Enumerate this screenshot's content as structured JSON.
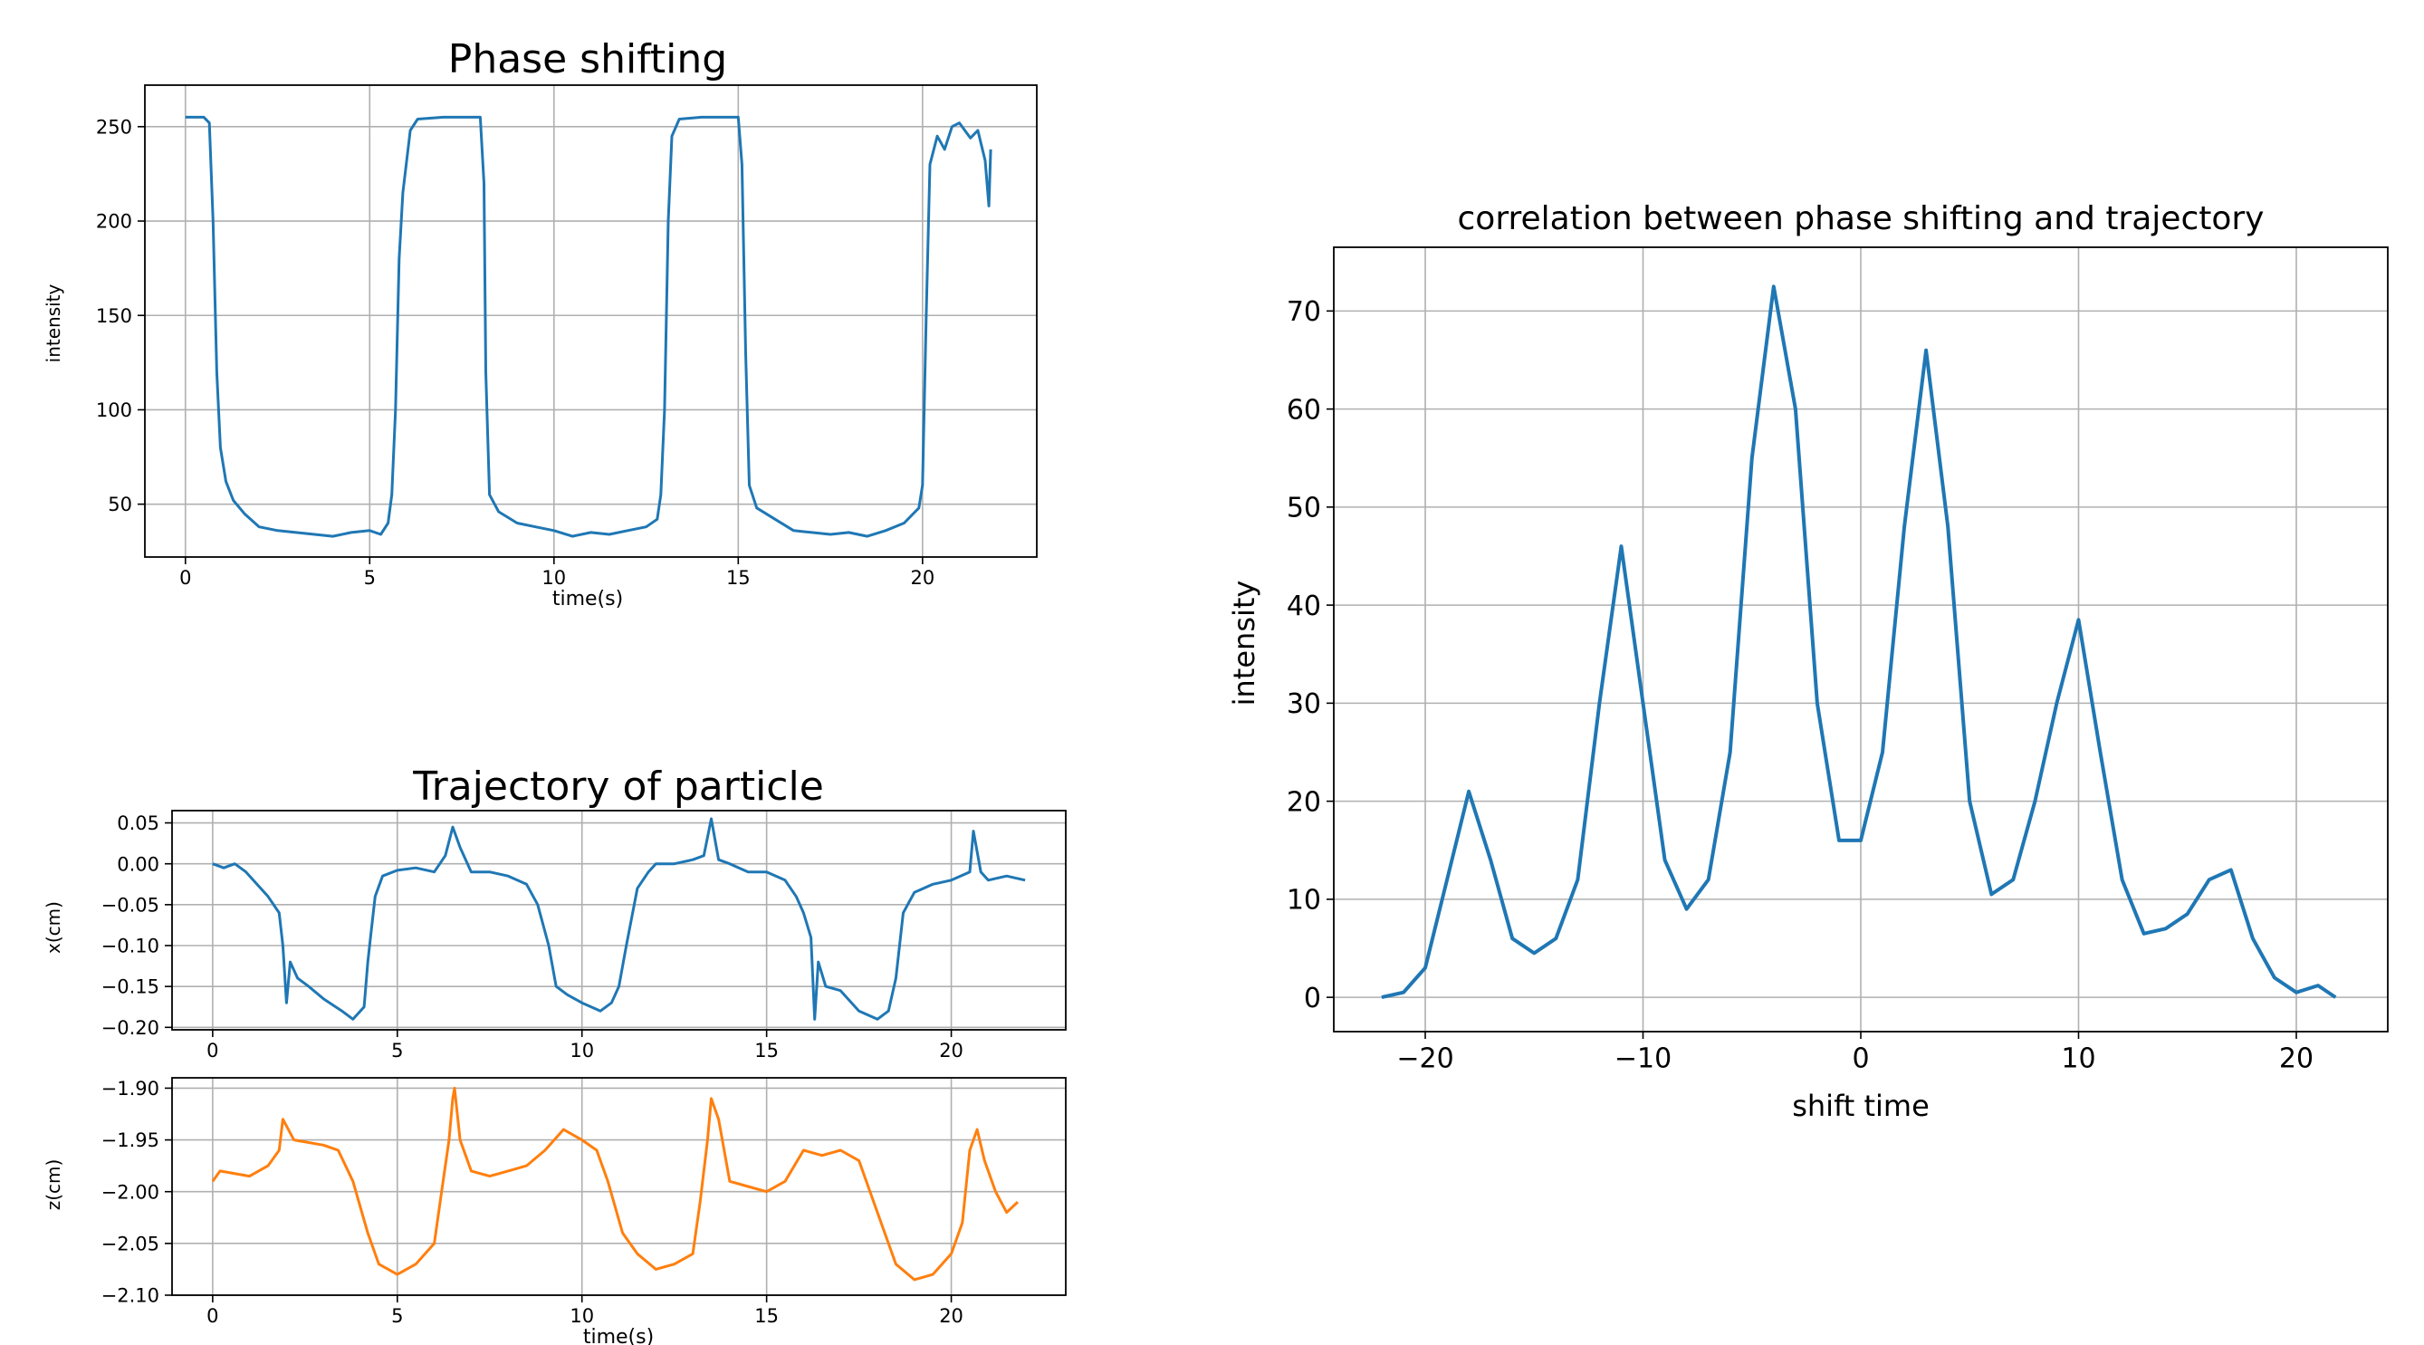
{
  "colors": {
    "series_blue": "#1f77b4",
    "series_orange": "#ff7f0e",
    "grid": "#b0b0b0",
    "axes": "#000000"
  },
  "chart_data": [
    {
      "id": "phase",
      "type": "line",
      "title": "Phase shifting",
      "xlabel": "time(s)",
      "ylabel": "intensity",
      "xlim": [
        -1.1,
        23.1
      ],
      "ylim": [
        22,
        272
      ],
      "xticks": [
        0,
        5,
        10,
        15,
        20
      ],
      "yticks": [
        50,
        100,
        150,
        200,
        250
      ],
      "grid": true,
      "series": [
        {
          "color": "#1f77b4",
          "points": [
            [
              0,
              255
            ],
            [
              0.5,
              255
            ],
            [
              0.65,
              252
            ],
            [
              0.75,
              200
            ],
            [
              0.85,
              120
            ],
            [
              0.95,
              80
            ],
            [
              1.1,
              62
            ],
            [
              1.3,
              52
            ],
            [
              1.6,
              45
            ],
            [
              2,
              38
            ],
            [
              2.5,
              36
            ],
            [
              3,
              35
            ],
            [
              3.5,
              34
            ],
            [
              4,
              33
            ],
            [
              4.5,
              35
            ],
            [
              5,
              36
            ],
            [
              5.3,
              34
            ],
            [
              5.5,
              40
            ],
            [
              5.6,
              55
            ],
            [
              5.7,
              100
            ],
            [
              5.8,
              180
            ],
            [
              5.9,
              215
            ],
            [
              6.1,
              248
            ],
            [
              6.3,
              254
            ],
            [
              7,
              255
            ],
            [
              7.8,
              255
            ],
            [
              8.0,
              255
            ],
            [
              8.1,
              220
            ],
            [
              8.15,
              120
            ],
            [
              8.25,
              55
            ],
            [
              8.5,
              46
            ],
            [
              9,
              40
            ],
            [
              9.5,
              38
            ],
            [
              10,
              36
            ],
            [
              10.5,
              33
            ],
            [
              11,
              35
            ],
            [
              11.5,
              34
            ],
            [
              12,
              36
            ],
            [
              12.5,
              38
            ],
            [
              12.8,
              42
            ],
            [
              12.9,
              55
            ],
            [
              13.0,
              100
            ],
            [
              13.1,
              200
            ],
            [
              13.2,
              245
            ],
            [
              13.4,
              254
            ],
            [
              14,
              255
            ],
            [
              14.8,
              255
            ],
            [
              15.0,
              255
            ],
            [
              15.1,
              230
            ],
            [
              15.2,
              130
            ],
            [
              15.3,
              60
            ],
            [
              15.5,
              48
            ],
            [
              16,
              42
            ],
            [
              16.5,
              36
            ],
            [
              17,
              35
            ],
            [
              17.5,
              34
            ],
            [
              18,
              35
            ],
            [
              18.5,
              33
            ],
            [
              19,
              36
            ],
            [
              19.5,
              40
            ],
            [
              19.9,
              48
            ],
            [
              20.0,
              60
            ],
            [
              20.1,
              150
            ],
            [
              20.2,
              230
            ],
            [
              20.4,
              245
            ],
            [
              20.6,
              238
            ],
            [
              20.8,
              250
            ],
            [
              21,
              252
            ],
            [
              21.3,
              244
            ],
            [
              21.5,
              248
            ],
            [
              21.7,
              232
            ],
            [
              21.8,
              208
            ],
            [
              21.85,
              238
            ]
          ]
        }
      ]
    },
    {
      "id": "x",
      "type": "line",
      "title": "Trajectory of particle",
      "xlabel": "",
      "ylabel": "x(cm)",
      "xlim": [
        -1.1,
        23.1
      ],
      "ylim": [
        -0.203,
        0.065
      ],
      "xticks": [
        0,
        5,
        10,
        15,
        20
      ],
      "yticks": [
        0.05,
        0.0,
        -0.05,
        -0.1,
        -0.15,
        -0.2
      ],
      "ytick_labels": [
        "0.05",
        "0.00",
        "−0.05",
        "−0.10",
        "−0.15",
        "−0.20"
      ],
      "grid": true,
      "series": [
        {
          "color": "#1f77b4",
          "points": [
            [
              0,
              0
            ],
            [
              0.3,
              -0.005
            ],
            [
              0.6,
              0
            ],
            [
              0.9,
              -0.01
            ],
            [
              1.2,
              -0.025
            ],
            [
              1.5,
              -0.04
            ],
            [
              1.8,
              -0.06
            ],
            [
              1.9,
              -0.1
            ],
            [
              2.0,
              -0.17
            ],
            [
              2.1,
              -0.12
            ],
            [
              2.3,
              -0.14
            ],
            [
              2.6,
              -0.15
            ],
            [
              3,
              -0.165
            ],
            [
              3.5,
              -0.18
            ],
            [
              3.8,
              -0.19
            ],
            [
              4.1,
              -0.175
            ],
            [
              4.2,
              -0.12
            ],
            [
              4.3,
              -0.08
            ],
            [
              4.4,
              -0.04
            ],
            [
              4.6,
              -0.015
            ],
            [
              5,
              -0.008
            ],
            [
              5.5,
              -0.005
            ],
            [
              6,
              -0.01
            ],
            [
              6.3,
              0.01
            ],
            [
              6.5,
              0.045
            ],
            [
              6.7,
              0.02
            ],
            [
              7,
              -0.01
            ],
            [
              7.5,
              -0.01
            ],
            [
              8,
              -0.015
            ],
            [
              8.5,
              -0.025
            ],
            [
              8.8,
              -0.05
            ],
            [
              9.1,
              -0.1
            ],
            [
              9.3,
              -0.15
            ],
            [
              9.6,
              -0.16
            ],
            [
              10,
              -0.17
            ],
            [
              10.5,
              -0.18
            ],
            [
              10.8,
              -0.17
            ],
            [
              11,
              -0.15
            ],
            [
              11.2,
              -0.1
            ],
            [
              11.5,
              -0.03
            ],
            [
              11.8,
              -0.01
            ],
            [
              12,
              0
            ],
            [
              12.5,
              0
            ],
            [
              13,
              0.005
            ],
            [
              13.3,
              0.01
            ],
            [
              13.5,
              0.055
            ],
            [
              13.7,
              0.005
            ],
            [
              14,
              0
            ],
            [
              14.5,
              -0.01
            ],
            [
              15,
              -0.01
            ],
            [
              15.5,
              -0.02
            ],
            [
              15.8,
              -0.04
            ],
            [
              16.0,
              -0.06
            ],
            [
              16.2,
              -0.09
            ],
            [
              16.3,
              -0.19
            ],
            [
              16.4,
              -0.12
            ],
            [
              16.6,
              -0.15
            ],
            [
              17,
              -0.155
            ],
            [
              17.5,
              -0.18
            ],
            [
              18,
              -0.19
            ],
            [
              18.3,
              -0.18
            ],
            [
              18.5,
              -0.14
            ],
            [
              18.7,
              -0.06
            ],
            [
              19,
              -0.035
            ],
            [
              19.5,
              -0.025
            ],
            [
              20,
              -0.02
            ],
            [
              20.5,
              -0.01
            ],
            [
              20.6,
              0.04
            ],
            [
              20.8,
              -0.01
            ],
            [
              21,
              -0.02
            ],
            [
              21.5,
              -0.015
            ],
            [
              22,
              -0.02
            ]
          ]
        }
      ]
    },
    {
      "id": "z",
      "type": "line",
      "title": "",
      "xlabel": "time(s)",
      "ylabel": "z(cm)",
      "xlim": [
        -1.1,
        23.1
      ],
      "ylim": [
        -2.1,
        -1.89
      ],
      "xticks": [
        0,
        5,
        10,
        15,
        20
      ],
      "yticks": [
        -1.9,
        -1.95,
        -2.0,
        -2.05,
        -2.1
      ],
      "ytick_labels": [
        "−1.90",
        "−1.95",
        "−2.00",
        "−2.05",
        "−2.10"
      ],
      "grid": true,
      "series": [
        {
          "color": "#ff7f0e",
          "points": [
            [
              0,
              -1.99
            ],
            [
              0.2,
              -1.98
            ],
            [
              1.0,
              -1.985
            ],
            [
              1.5,
              -1.975
            ],
            [
              1.8,
              -1.96
            ],
            [
              1.9,
              -1.93
            ],
            [
              2.2,
              -1.95
            ],
            [
              3,
              -1.955
            ],
            [
              3.4,
              -1.96
            ],
            [
              3.8,
              -1.99
            ],
            [
              4.2,
              -2.04
            ],
            [
              4.5,
              -2.07
            ],
            [
              5,
              -2.08
            ],
            [
              5.5,
              -2.07
            ],
            [
              6,
              -2.05
            ],
            [
              6.2,
              -2.0
            ],
            [
              6.4,
              -1.95
            ],
            [
              6.5,
              -1.91
            ],
            [
              6.55,
              -1.9
            ],
            [
              6.7,
              -1.95
            ],
            [
              7,
              -1.98
            ],
            [
              7.5,
              -1.985
            ],
            [
              8,
              -1.98
            ],
            [
              8.5,
              -1.975
            ],
            [
              9,
              -1.96
            ],
            [
              9.5,
              -1.94
            ],
            [
              10,
              -1.95
            ],
            [
              10.4,
              -1.96
            ],
            [
              10.7,
              -1.99
            ],
            [
              11.1,
              -2.04
            ],
            [
              11.5,
              -2.06
            ],
            [
              12,
              -2.075
            ],
            [
              12.5,
              -2.07
            ],
            [
              13,
              -2.06
            ],
            [
              13.2,
              -2.01
            ],
            [
              13.4,
              -1.95
            ],
            [
              13.5,
              -1.91
            ],
            [
              13.7,
              -1.93
            ],
            [
              14,
              -1.99
            ],
            [
              14.5,
              -1.995
            ],
            [
              15,
              -2.0
            ],
            [
              15.5,
              -1.99
            ],
            [
              16,
              -1.96
            ],
            [
              16.5,
              -1.965
            ],
            [
              17,
              -1.96
            ],
            [
              17.5,
              -1.97
            ],
            [
              18,
              -2.02
            ],
            [
              18.5,
              -2.07
            ],
            [
              19,
              -2.085
            ],
            [
              19.5,
              -2.08
            ],
            [
              20,
              -2.06
            ],
            [
              20.3,
              -2.03
            ],
            [
              20.5,
              -1.96
            ],
            [
              20.7,
              -1.94
            ],
            [
              20.9,
              -1.97
            ],
            [
              21.2,
              -2.0
            ],
            [
              21.5,
              -2.02
            ],
            [
              21.8,
              -2.01
            ]
          ]
        }
      ]
    },
    {
      "id": "corr",
      "type": "line",
      "title": "correlation between phase shifting and trajectory",
      "xlabel": "shift time",
      "ylabel": "intensity",
      "xlim": [
        -24.2,
        24.2
      ],
      "ylim": [
        -3.5,
        76.5
      ],
      "xticks": [
        -20,
        -10,
        0,
        10,
        20
      ],
      "xtick_labels": [
        "−20",
        "−10",
        "0",
        "10",
        "20"
      ],
      "yticks": [
        0,
        10,
        20,
        30,
        40,
        50,
        60,
        70
      ],
      "grid": true,
      "series": [
        {
          "color": "#1f77b4",
          "points": [
            [
              -22,
              0
            ],
            [
              -21,
              0.5
            ],
            [
              -20,
              3
            ],
            [
              -19,
              12
            ],
            [
              -18,
              21
            ],
            [
              -17,
              14
            ],
            [
              -16,
              6
            ],
            [
              -15,
              4.5
            ],
            [
              -14,
              6
            ],
            [
              -13,
              12
            ],
            [
              -12,
              30
            ],
            [
              -11,
              46
            ],
            [
              -10,
              30
            ],
            [
              -9,
              14
            ],
            [
              -8,
              9
            ],
            [
              -7,
              12
            ],
            [
              -6,
              25
            ],
            [
              -5,
              55
            ],
            [
              -4,
              72.5
            ],
            [
              -3,
              60
            ],
            [
              -2,
              30
            ],
            [
              -1,
              16
            ],
            [
              0,
              16
            ],
            [
              1,
              25
            ],
            [
              2,
              48
            ],
            [
              3,
              66
            ],
            [
              4,
              48
            ],
            [
              5,
              20
            ],
            [
              6,
              10.5
            ],
            [
              7,
              12
            ],
            [
              8,
              20
            ],
            [
              9,
              30
            ],
            [
              10,
              38.5
            ],
            [
              11,
              25
            ],
            [
              12,
              12
            ],
            [
              13,
              6.5
            ],
            [
              14,
              7
            ],
            [
              15,
              8.5
            ],
            [
              16,
              12
            ],
            [
              17,
              13
            ],
            [
              18,
              6
            ],
            [
              19,
              2
            ],
            [
              20,
              0.5
            ],
            [
              21,
              1.2
            ],
            [
              21.8,
              0
            ]
          ]
        }
      ]
    }
  ]
}
